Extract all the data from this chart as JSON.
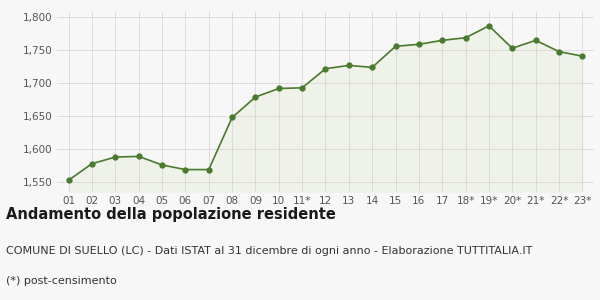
{
  "x_labels": [
    "01",
    "02",
    "03",
    "04",
    "05",
    "06",
    "07",
    "08",
    "09",
    "10",
    "11*",
    "12",
    "13",
    "14",
    "15",
    "16",
    "17",
    "18*",
    "19*",
    "20*",
    "21*",
    "22*",
    "23*"
  ],
  "y_values": [
    1553,
    1578,
    1588,
    1589,
    1576,
    1569,
    1569,
    1648,
    1679,
    1692,
    1693,
    1722,
    1727,
    1724,
    1756,
    1759,
    1765,
    1769,
    1787,
    1753,
    1765,
    1748,
    1741
  ],
  "line_color": "#4a7a2e",
  "fill_color": "#eef2e8",
  "marker_color": "#4a7a2e",
  "background_color": "#f7f7f7",
  "plot_bg_color": "#f7f7f7",
  "ylim": [
    1535,
    1808
  ],
  "yticks": [
    1550,
    1600,
    1650,
    1700,
    1750,
    1800
  ],
  "title": "Andamento della popolazione residente",
  "subtitle": "COMUNE DI SUELLO (LC) - Dati ISTAT al 31 dicembre di ogni anno - Elaborazione TUTTITALIA.IT",
  "footnote": "(*) post-censimento",
  "title_fontsize": 10.5,
  "subtitle_fontsize": 8,
  "footnote_fontsize": 8,
  "grid_color": "#d8d8d8",
  "tick_label_color": "#555555"
}
